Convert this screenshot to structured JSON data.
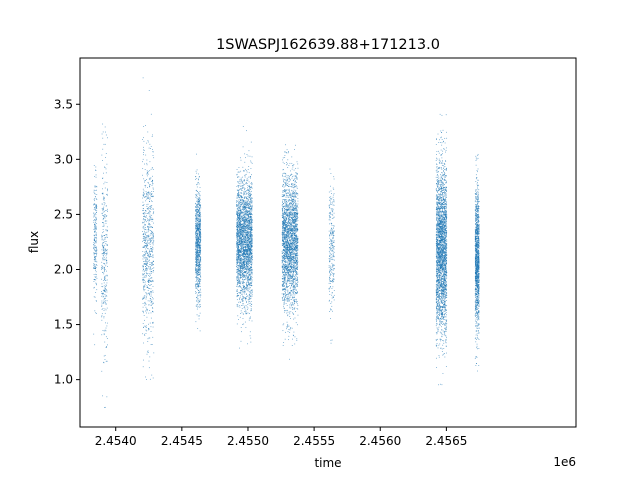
{
  "chart_data": {
    "type": "scatter",
    "title": "1SWASPJ162639.88+171213.0",
    "xlabel": "time",
    "ylabel": "flux",
    "x_offset_label": "1e6",
    "xlim": [
      2453730,
      2457480
    ],
    "ylim": [
      0.57,
      3.92
    ],
    "grid": false,
    "legend": "none",
    "marker_color": "#1f77b4",
    "x_ticks": [
      {
        "value": 2454000,
        "label": "2.4540"
      },
      {
        "value": 2454500,
        "label": "2.4545"
      },
      {
        "value": 2455000,
        "label": "2.4550"
      },
      {
        "value": 2455500,
        "label": "2.4555"
      },
      {
        "value": 2456000,
        "label": "2.4560"
      },
      {
        "value": 2456500,
        "label": "2.4565"
      }
    ],
    "y_ticks": [
      {
        "value": 1.0,
        "label": "1.0"
      },
      {
        "value": 1.5,
        "label": "1.5"
      },
      {
        "value": 2.0,
        "label": "2.0"
      },
      {
        "value": 2.5,
        "label": "2.5"
      },
      {
        "value": 3.0,
        "label": "3.0"
      },
      {
        "value": 3.5,
        "label": "3.5"
      }
    ],
    "clusters": [
      {
        "x_start": 2453830,
        "x_end": 2453855,
        "y_center": 2.3,
        "y_spread": 0.32,
        "y_min": 1.1,
        "y_max": 2.95,
        "points": 220
      },
      {
        "x_start": 2453890,
        "x_end": 2453935,
        "y_center": 2.15,
        "y_spread": 0.45,
        "y_min": 0.72,
        "y_max": 3.8,
        "points": 320
      },
      {
        "x_start": 2454200,
        "x_end": 2454285,
        "y_center": 2.2,
        "y_spread": 0.45,
        "y_min": 1.0,
        "y_max": 3.75,
        "points": 700
      },
      {
        "x_start": 2454600,
        "x_end": 2454640,
        "y_center": 2.25,
        "y_spread": 0.25,
        "y_min": 0.87,
        "y_max": 3.55,
        "points": 900
      },
      {
        "x_start": 2454910,
        "x_end": 2455030,
        "y_center": 2.25,
        "y_spread": 0.28,
        "y_min": 0.85,
        "y_max": 3.7,
        "points": 2600
      },
      {
        "x_start": 2455255,
        "x_end": 2455375,
        "y_center": 2.25,
        "y_spread": 0.3,
        "y_min": 0.73,
        "y_max": 3.65,
        "points": 2400
      },
      {
        "x_start": 2455610,
        "x_end": 2455650,
        "y_center": 2.2,
        "y_spread": 0.3,
        "y_min": 1.3,
        "y_max": 3.5,
        "points": 260
      },
      {
        "x_start": 2456420,
        "x_end": 2456500,
        "y_center": 2.2,
        "y_spread": 0.38,
        "y_min": 0.94,
        "y_max": 3.8,
        "points": 2600
      },
      {
        "x_start": 2456715,
        "x_end": 2456745,
        "y_center": 2.1,
        "y_spread": 0.33,
        "y_min": 0.8,
        "y_max": 3.05,
        "points": 1200
      }
    ]
  }
}
